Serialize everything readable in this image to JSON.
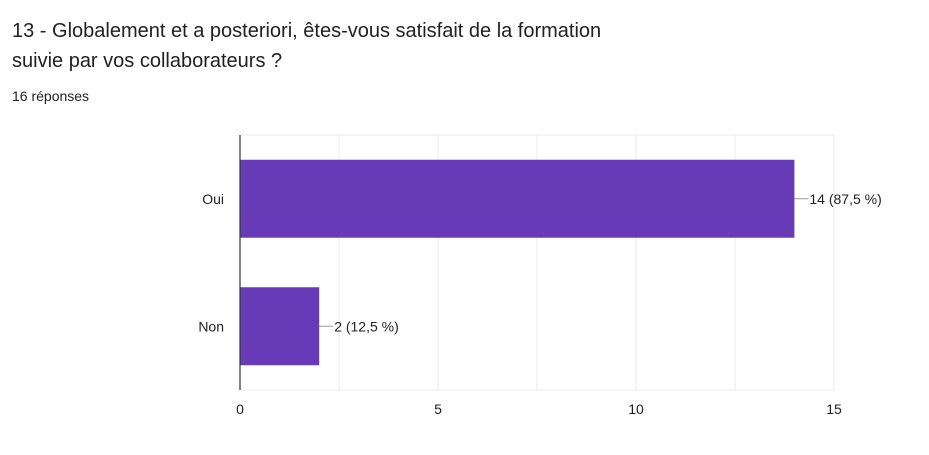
{
  "question": {
    "title": "13 - Globalement et a posteriori, êtes-vous satisfait de la formation suivie par vos collaborateurs ?",
    "responses": "16 réponses"
  },
  "colors": {
    "bar": "#673ab7",
    "grid": "#ebebeb",
    "axis": "#333333",
    "text": "#202124"
  },
  "chart_data": {
    "type": "bar",
    "orientation": "horizontal",
    "categories": [
      "Oui",
      "Non"
    ],
    "values": [
      14,
      2
    ],
    "data_labels": [
      "14 (87,5 %)",
      "2 (12,5 %)"
    ],
    "xlim": [
      0,
      15
    ],
    "x_ticks": [
      0,
      5,
      10,
      15
    ],
    "grid": true,
    "legend": "none"
  }
}
